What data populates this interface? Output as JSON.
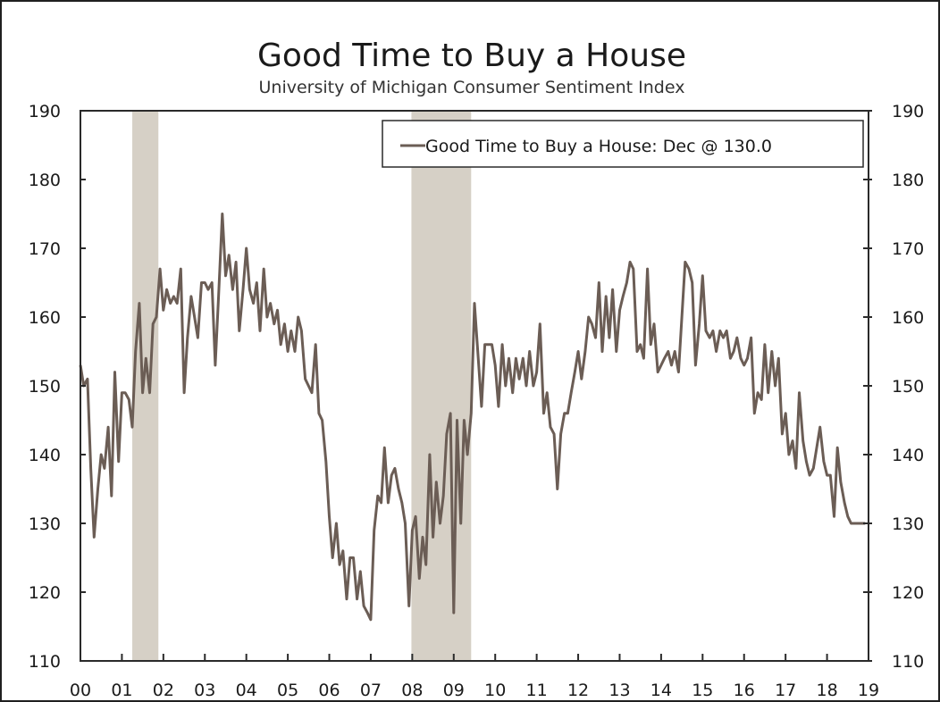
{
  "chart_data": {
    "type": "line",
    "title": "Good Time to Buy a House",
    "subtitle": "University of Michigan Consumer Sentiment Index",
    "ylim": [
      110,
      190
    ],
    "y_ticks": [
      110,
      120,
      130,
      140,
      150,
      160,
      170,
      180,
      190
    ],
    "right_axis_mirrors_left": true,
    "x_range": [
      2000.0,
      2019.0
    ],
    "x_tick_labels": [
      "00",
      "01",
      "02",
      "03",
      "04",
      "05",
      "06",
      "07",
      "08",
      "09",
      "10",
      "11",
      "12",
      "13",
      "14",
      "15",
      "16",
      "17",
      "18",
      "19"
    ],
    "grid": false,
    "legend": {
      "placement": "top-right",
      "entries": [
        "Good Time to Buy a House: Dec @ 130.0"
      ]
    },
    "recessions": [
      [
        2001.25,
        2001.88
      ],
      [
        2007.98,
        2009.42
      ]
    ],
    "series": [
      {
        "name": "Good Time to Buy a House: Dec @ 130.0",
        "color": "#6b5d55",
        "points": [
          [
            2000.0,
            153
          ],
          [
            2000.08,
            150
          ],
          [
            2000.17,
            151
          ],
          [
            2000.25,
            138
          ],
          [
            2000.33,
            128
          ],
          [
            2000.42,
            135
          ],
          [
            2000.5,
            140
          ],
          [
            2000.58,
            138
          ],
          [
            2000.67,
            144
          ],
          [
            2000.75,
            134
          ],
          [
            2000.83,
            152
          ],
          [
            2000.92,
            139
          ],
          [
            2001.0,
            149
          ],
          [
            2001.08,
            149
          ],
          [
            2001.17,
            148
          ],
          [
            2001.25,
            144
          ],
          [
            2001.33,
            155
          ],
          [
            2001.42,
            162
          ],
          [
            2001.5,
            149
          ],
          [
            2001.58,
            154
          ],
          [
            2001.67,
            149
          ],
          [
            2001.75,
            159
          ],
          [
            2001.83,
            160
          ],
          [
            2001.92,
            167
          ],
          [
            2002.0,
            161
          ],
          [
            2002.08,
            164
          ],
          [
            2002.17,
            162
          ],
          [
            2002.25,
            163
          ],
          [
            2002.33,
            162
          ],
          [
            2002.42,
            167
          ],
          [
            2002.5,
            149
          ],
          [
            2002.58,
            157
          ],
          [
            2002.67,
            163
          ],
          [
            2002.75,
            160
          ],
          [
            2002.83,
            157
          ],
          [
            2002.92,
            165
          ],
          [
            2003.0,
            165
          ],
          [
            2003.08,
            164
          ],
          [
            2003.17,
            165
          ],
          [
            2003.25,
            153
          ],
          [
            2003.33,
            163
          ],
          [
            2003.42,
            175
          ],
          [
            2003.5,
            166
          ],
          [
            2003.58,
            169
          ],
          [
            2003.67,
            164
          ],
          [
            2003.75,
            168
          ],
          [
            2003.83,
            158
          ],
          [
            2003.92,
            164
          ],
          [
            2004.0,
            170
          ],
          [
            2004.08,
            164
          ],
          [
            2004.17,
            162
          ],
          [
            2004.25,
            165
          ],
          [
            2004.33,
            158
          ],
          [
            2004.42,
            167
          ],
          [
            2004.5,
            160
          ],
          [
            2004.58,
            162
          ],
          [
            2004.67,
            159
          ],
          [
            2004.75,
            161
          ],
          [
            2004.83,
            156
          ],
          [
            2004.92,
            159
          ],
          [
            2005.0,
            155
          ],
          [
            2005.08,
            158
          ],
          [
            2005.17,
            155
          ],
          [
            2005.25,
            160
          ],
          [
            2005.33,
            158
          ],
          [
            2005.42,
            151
          ],
          [
            2005.5,
            150
          ],
          [
            2005.58,
            149
          ],
          [
            2005.67,
            156
          ],
          [
            2005.75,
            146
          ],
          [
            2005.83,
            145
          ],
          [
            2005.92,
            139
          ],
          [
            2006.0,
            131
          ],
          [
            2006.08,
            125
          ],
          [
            2006.17,
            130
          ],
          [
            2006.25,
            124
          ],
          [
            2006.33,
            126
          ],
          [
            2006.42,
            119
          ],
          [
            2006.5,
            125
          ],
          [
            2006.58,
            125
          ],
          [
            2006.67,
            119
          ],
          [
            2006.75,
            123
          ],
          [
            2006.83,
            118
          ],
          [
            2006.92,
            117
          ],
          [
            2007.0,
            116
          ],
          [
            2007.08,
            129
          ],
          [
            2007.17,
            134
          ],
          [
            2007.25,
            133
          ],
          [
            2007.33,
            141
          ],
          [
            2007.42,
            133
          ],
          [
            2007.5,
            137
          ],
          [
            2007.58,
            138
          ],
          [
            2007.67,
            135
          ],
          [
            2007.75,
            133
          ],
          [
            2007.83,
            130
          ],
          [
            2007.92,
            118
          ],
          [
            2008.0,
            129
          ],
          [
            2008.08,
            131
          ],
          [
            2008.17,
            122
          ],
          [
            2008.25,
            128
          ],
          [
            2008.33,
            124
          ],
          [
            2008.42,
            140
          ],
          [
            2008.5,
            128
          ],
          [
            2008.58,
            136
          ],
          [
            2008.67,
            130
          ],
          [
            2008.75,
            134
          ],
          [
            2008.83,
            143
          ],
          [
            2008.92,
            146
          ],
          [
            2009.0,
            117
          ],
          [
            2009.08,
            145
          ],
          [
            2009.17,
            130
          ],
          [
            2009.25,
            145
          ],
          [
            2009.33,
            140
          ],
          [
            2009.42,
            146
          ],
          [
            2009.5,
            162
          ],
          [
            2009.58,
            155
          ],
          [
            2009.67,
            147
          ],
          [
            2009.75,
            156
          ],
          [
            2009.83,
            156
          ],
          [
            2009.92,
            156
          ],
          [
            2010.0,
            153
          ],
          [
            2010.08,
            147
          ],
          [
            2010.17,
            156
          ],
          [
            2010.25,
            150
          ],
          [
            2010.33,
            154
          ],
          [
            2010.42,
            149
          ],
          [
            2010.5,
            154
          ],
          [
            2010.58,
            151
          ],
          [
            2010.67,
            154
          ],
          [
            2010.75,
            150
          ],
          [
            2010.83,
            155
          ],
          [
            2010.92,
            150
          ],
          [
            2011.0,
            152
          ],
          [
            2011.08,
            159
          ],
          [
            2011.17,
            146
          ],
          [
            2011.25,
            149
          ],
          [
            2011.33,
            144
          ],
          [
            2011.42,
            143
          ],
          [
            2011.5,
            135
          ],
          [
            2011.58,
            143
          ],
          [
            2011.67,
            146
          ],
          [
            2011.75,
            146
          ],
          [
            2011.83,
            149
          ],
          [
            2011.92,
            152
          ],
          [
            2012.0,
            155
          ],
          [
            2012.08,
            151
          ],
          [
            2012.17,
            155
          ],
          [
            2012.25,
            160
          ],
          [
            2012.33,
            159
          ],
          [
            2012.42,
            157
          ],
          [
            2012.5,
            165
          ],
          [
            2012.58,
            155
          ],
          [
            2012.67,
            163
          ],
          [
            2012.75,
            157
          ],
          [
            2012.83,
            164
          ],
          [
            2012.92,
            155
          ],
          [
            2013.0,
            161
          ],
          [
            2013.08,
            163
          ],
          [
            2013.17,
            165
          ],
          [
            2013.25,
            168
          ],
          [
            2013.33,
            167
          ],
          [
            2013.42,
            155
          ],
          [
            2013.5,
            156
          ],
          [
            2013.58,
            154
          ],
          [
            2013.67,
            167
          ],
          [
            2013.75,
            156
          ],
          [
            2013.83,
            159
          ],
          [
            2013.92,
            152
          ],
          [
            2014.0,
            153
          ],
          [
            2014.08,
            154
          ],
          [
            2014.17,
            155
          ],
          [
            2014.25,
            153
          ],
          [
            2014.33,
            155
          ],
          [
            2014.42,
            152
          ],
          [
            2014.5,
            160
          ],
          [
            2014.58,
            168
          ],
          [
            2014.67,
            167
          ],
          [
            2014.75,
            165
          ],
          [
            2014.83,
            153
          ],
          [
            2014.92,
            159
          ],
          [
            2015.0,
            166
          ],
          [
            2015.08,
            158
          ],
          [
            2015.17,
            157
          ],
          [
            2015.25,
            158
          ],
          [
            2015.33,
            155
          ],
          [
            2015.42,
            158
          ],
          [
            2015.5,
            157
          ],
          [
            2015.58,
            158
          ],
          [
            2015.67,
            154
          ],
          [
            2015.75,
            155
          ],
          [
            2015.83,
            157
          ],
          [
            2015.92,
            154
          ],
          [
            2016.0,
            153
          ],
          [
            2016.08,
            154
          ],
          [
            2016.17,
            157
          ],
          [
            2016.25,
            146
          ],
          [
            2016.33,
            149
          ],
          [
            2016.42,
            148
          ],
          [
            2016.5,
            156
          ],
          [
            2016.58,
            149
          ],
          [
            2016.67,
            155
          ],
          [
            2016.75,
            150
          ],
          [
            2016.83,
            154
          ],
          [
            2016.92,
            143
          ],
          [
            2017.0,
            146
          ],
          [
            2017.08,
            140
          ],
          [
            2017.17,
            142
          ],
          [
            2017.25,
            138
          ],
          [
            2017.33,
            149
          ],
          [
            2017.42,
            142
          ],
          [
            2017.5,
            139
          ],
          [
            2017.58,
            137
          ],
          [
            2017.67,
            138
          ],
          [
            2017.75,
            141
          ],
          [
            2017.83,
            144
          ],
          [
            2017.92,
            139
          ],
          [
            2018.0,
            137
          ],
          [
            2018.08,
            137
          ],
          [
            2018.17,
            131
          ],
          [
            2018.25,
            141
          ],
          [
            2018.33,
            136
          ],
          [
            2018.42,
            133
          ],
          [
            2018.5,
            131
          ],
          [
            2018.58,
            130
          ],
          [
            2018.67,
            130
          ],
          [
            2018.75,
            130
          ],
          [
            2018.83,
            130
          ],
          [
            2018.92,
            130
          ]
        ]
      }
    ]
  }
}
